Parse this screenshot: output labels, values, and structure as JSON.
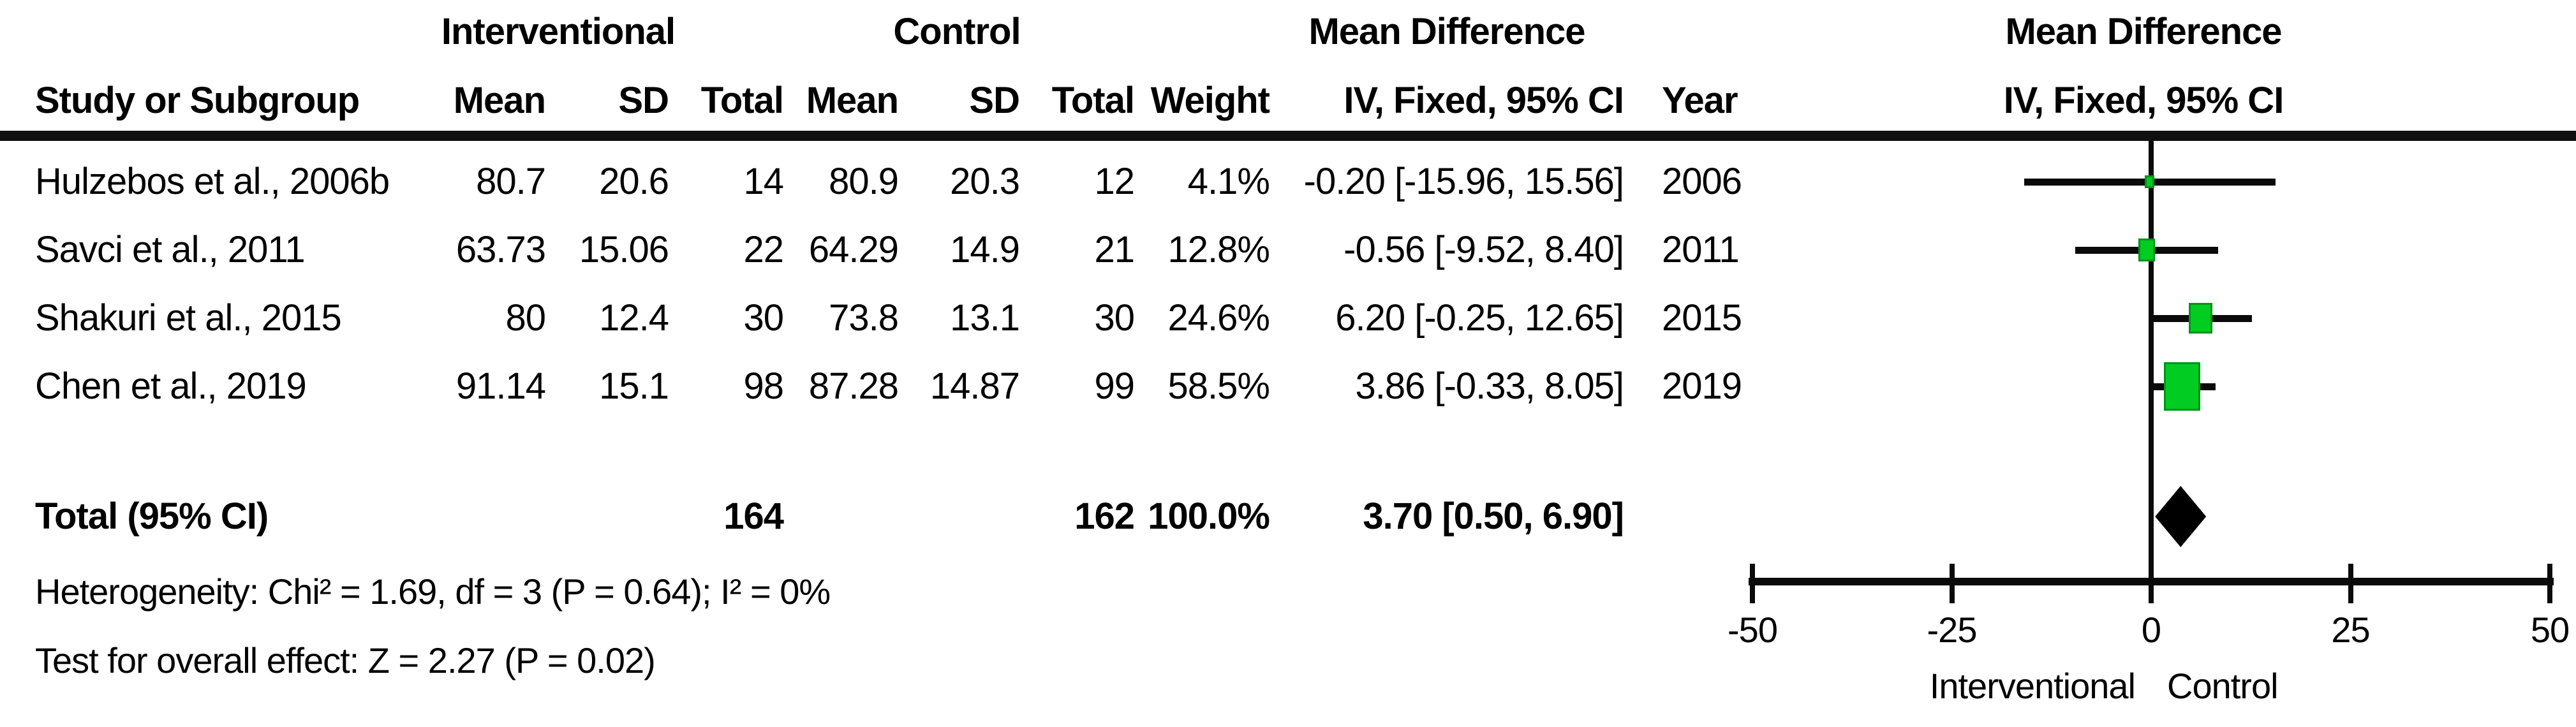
{
  "header": {
    "group1": "Interventional",
    "group2": "Control",
    "effect_left": "Mean Difference",
    "effect_right": "Mean Difference",
    "col_study": "Study or Subgroup",
    "col_mean": "Mean",
    "col_sd": "SD",
    "col_total": "Total",
    "col_weight": "Weight",
    "col_ci": "IV, Fixed, 95% CI",
    "col_year": "Year",
    "plot_ci": "IV, Fixed, 95% CI"
  },
  "chart_data": {
    "type": "forest",
    "effect_measure": "Mean Difference",
    "model": "IV, Fixed, 95% CI",
    "axis": {
      "min": -50,
      "max": 50,
      "ticks": [
        -50,
        -25,
        0,
        25,
        50
      ],
      "left_label": "Interventional",
      "right_label": "Control"
    },
    "studies": [
      {
        "name": "Hulzebos et al., 2006b",
        "mean1": "80.7",
        "sd1": "20.6",
        "n1": "14",
        "mean2": "80.9",
        "sd2": "20.3",
        "n2": "12",
        "weight": "4.1%",
        "weight_pct": 4.1,
        "ci_label": "-0.20 [-15.96, 15.56]",
        "md": -0.2,
        "lo": -15.96,
        "hi": 15.56,
        "year": "2006"
      },
      {
        "name": "Savci et al., 2011",
        "mean1": "63.73",
        "sd1": "15.06",
        "n1": "22",
        "mean2": "64.29",
        "sd2": "14.9",
        "n2": "21",
        "weight": "12.8%",
        "weight_pct": 12.8,
        "ci_label": "-0.56 [-9.52, 8.40]",
        "md": -0.56,
        "lo": -9.52,
        "hi": 8.4,
        "year": "2011"
      },
      {
        "name": "Shakuri et al., 2015",
        "mean1": "80",
        "sd1": "12.4",
        "n1": "30",
        "mean2": "73.8",
        "sd2": "13.1",
        "n2": "30",
        "weight": "24.6%",
        "weight_pct": 24.6,
        "ci_label": "6.20 [-0.25, 12.65]",
        "md": 6.2,
        "lo": -0.25,
        "hi": 12.65,
        "year": "2015"
      },
      {
        "name": "Chen et al., 2019",
        "mean1": "91.14",
        "sd1": "15.1",
        "n1": "98",
        "mean2": "87.28",
        "sd2": "14.87",
        "n2": "99",
        "weight": "58.5%",
        "weight_pct": 58.5,
        "ci_label": "3.86 [-0.33, 8.05]",
        "md": 3.86,
        "lo": -0.33,
        "hi": 8.05,
        "year": "2019"
      }
    ],
    "total": {
      "name": "Total (95% CI)",
      "n1": "164",
      "n2": "162",
      "weight": "100.0%",
      "ci_label": "3.70 [0.50, 6.90]",
      "md": 3.7,
      "lo": 0.5,
      "hi": 6.9
    },
    "footnotes": {
      "heterogeneity": "Heterogeneity: Chi² = 1.69, df = 3 (P = 0.64); I² = 0%",
      "overall_effect": "Test for overall effect: Z = 2.27 (P = 0.02)"
    },
    "colors": {
      "marker_fill": "#00cc22",
      "marker_border": "#009418",
      "summary": "#000000",
      "line": "#0a0a0a"
    }
  }
}
